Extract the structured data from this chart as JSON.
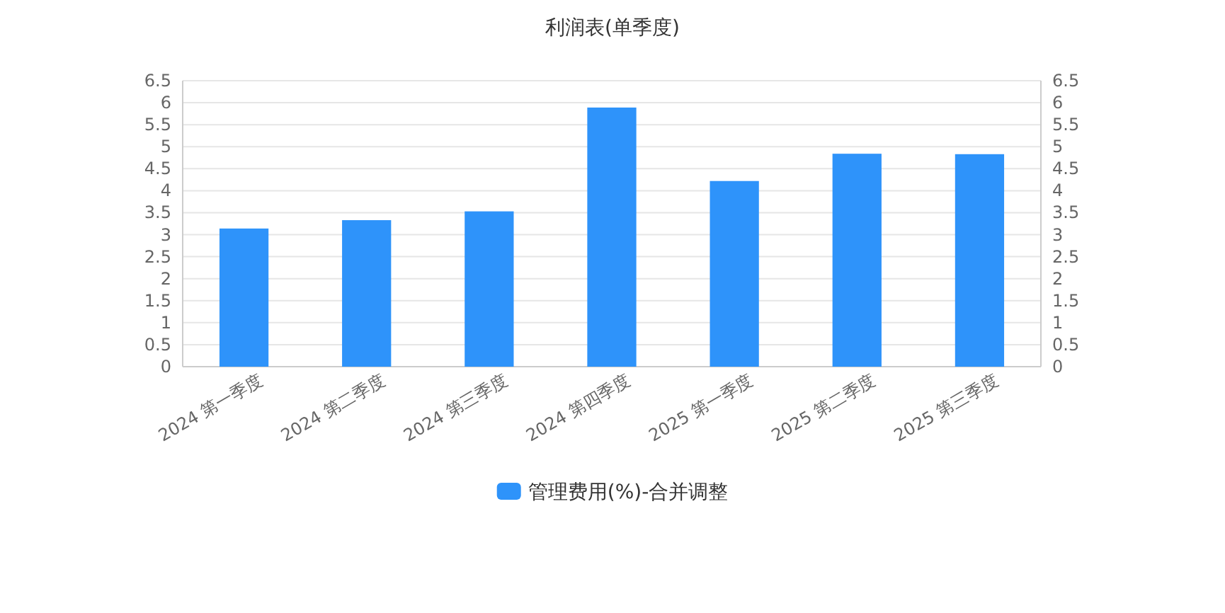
{
  "chart_data": {
    "type": "bar",
    "title": "利润表(单季度)",
    "categories": [
      "2024 第一季度",
      "2024 第二季度",
      "2024 第三季度",
      "2024 第四季度",
      "2025 第一季度",
      "2025 第二季度",
      "2025 第三季度"
    ],
    "series": [
      {
        "name": "管理费用(%)-合并调整",
        "color": "#2e93fa",
        "values": [
          3.14,
          3.33,
          3.53,
          5.89,
          4.22,
          4.84,
          4.83
        ]
      }
    ],
    "ylim": [
      0,
      6.5
    ],
    "yticks": [
      0,
      0.5,
      1,
      1.5,
      2,
      2.5,
      3,
      3.5,
      4,
      4.5,
      5,
      5.5,
      6,
      6.5
    ],
    "y2lim": [
      0,
      6.5
    ],
    "y2ticks": [
      0,
      0.5,
      1,
      1.5,
      2,
      2.5,
      3,
      3.5,
      4,
      4.5,
      5,
      5.5,
      6,
      6.5
    ],
    "grid": "y",
    "legend": "bottom"
  }
}
